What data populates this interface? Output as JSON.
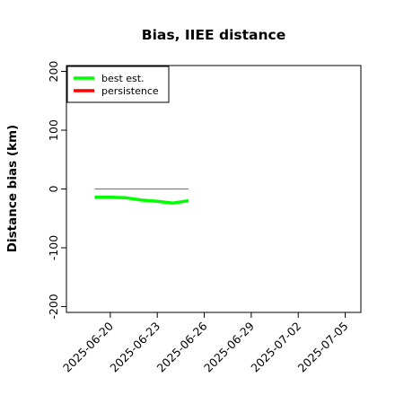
{
  "chart_data": {
    "type": "line",
    "title": "Bias, IIEE distance",
    "xlabel": "",
    "ylabel": "Distance bias (km)",
    "x_ticks": [
      "2025-06-20",
      "2025-06-23",
      "2025-06-26",
      "2025-06-29",
      "2025-07-02",
      "2025-07-05"
    ],
    "x_tick_days": [
      2,
      5,
      8,
      11,
      14,
      17
    ],
    "xlim": [
      -0.8,
      18.0
    ],
    "ylim": [
      -210,
      210
    ],
    "y_ticks": [
      -200,
      -100,
      0,
      100,
      200
    ],
    "legend_position": "top-left",
    "series": [
      {
        "name": "best est.",
        "color": "#00ff00",
        "x_days": [
          1,
          2,
          3,
          4,
          5,
          6,
          7
        ],
        "values": [
          -14,
          -14,
          -15,
          -19,
          -21,
          -24,
          -20
        ]
      },
      {
        "name": "persistence",
        "color": "#ff0000",
        "x_days": [],
        "values": []
      },
      {
        "name": "",
        "color": "#808080",
        "x_days": [
          1,
          7
        ],
        "values": [
          0,
          0
        ]
      }
    ],
    "x_dates": [
      "2025-06-19",
      "2025-06-20",
      "2025-06-21",
      "2025-06-22",
      "2025-06-23",
      "2025-06-24",
      "2025-06-25"
    ]
  }
}
